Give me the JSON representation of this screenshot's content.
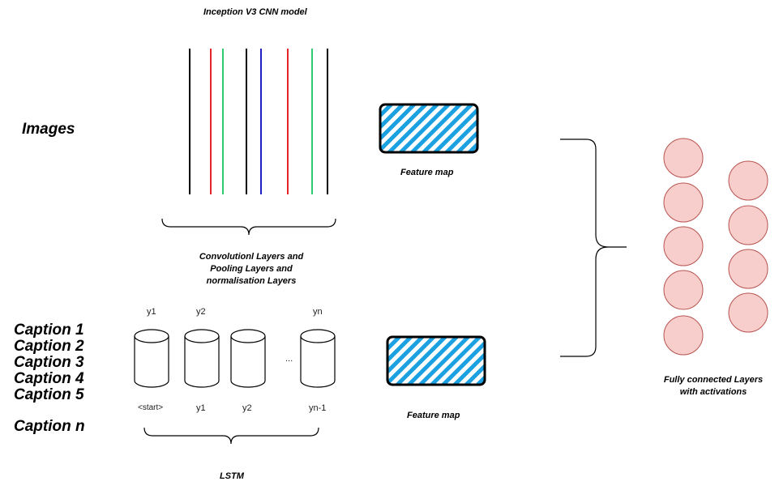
{
  "inception": {
    "title": "Inception V3 CNN model",
    "layers_caption": [
      "Convolutionl Layers and",
      "Pooling Layers and",
      "normalisation Layers"
    ]
  },
  "inputs": {
    "images": "Images",
    "captions": [
      "Caption 1",
      "Caption 2",
      "Caption 3",
      "Caption 4",
      "Caption 5",
      "Caption n"
    ]
  },
  "feature_map": {
    "label_top": "Feature map",
    "label_bottom": "Feature map"
  },
  "lstm": {
    "label": "LSTM",
    "outputs": [
      "y1",
      "y2",
      "yn"
    ],
    "inputs": [
      "<start>",
      "y1",
      "y2",
      "yn-1"
    ],
    "ellipsis": "..."
  },
  "fc": {
    "caption": [
      "Fully connected Layers",
      "with activations"
    ]
  },
  "colors": {
    "black": "#000000",
    "red": "#e8242b",
    "green": "#2ecc71",
    "blue": "#2020c0",
    "hatch_blue": "#1ba1e2",
    "neuron_fill": "#f8cecc",
    "neuron_stroke": "#b85450"
  }
}
